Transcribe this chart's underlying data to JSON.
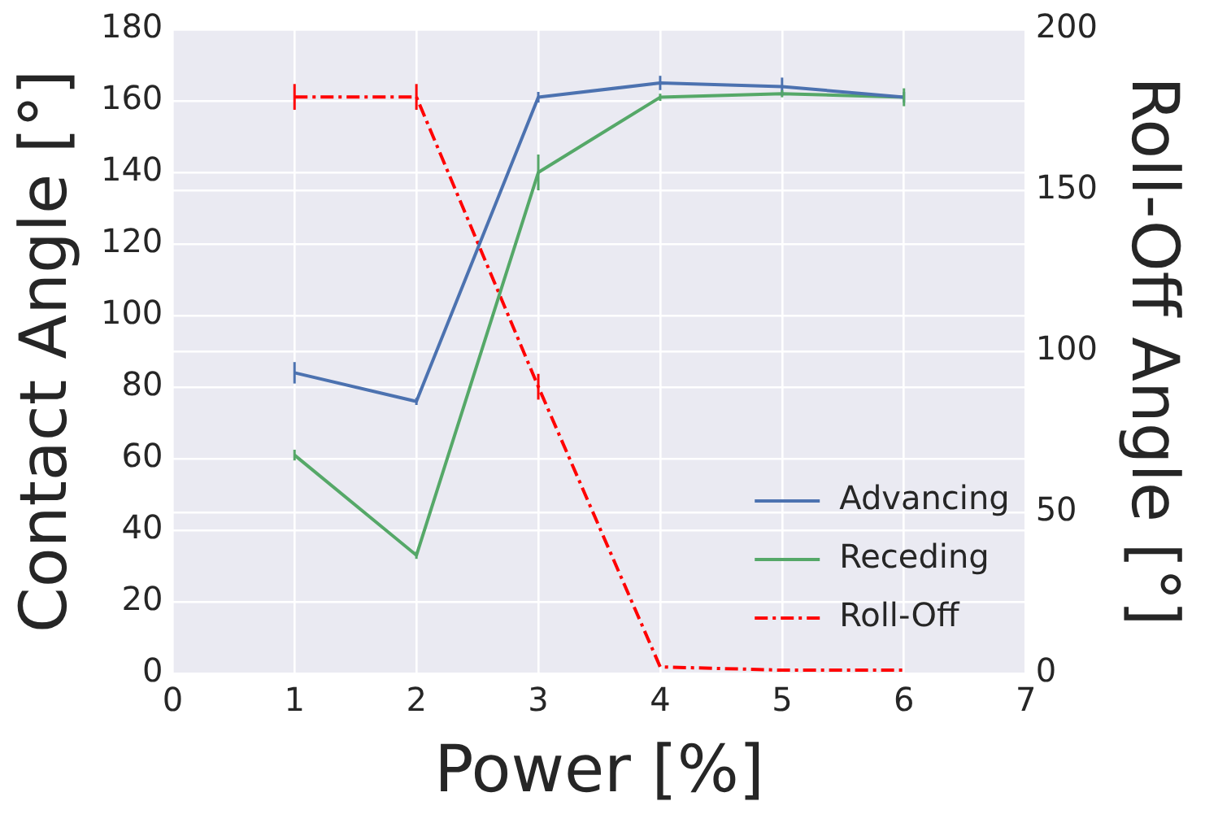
{
  "chart_data": {
    "type": "line",
    "xlabel": "Power [%]",
    "ylabel": "Contact Angle [°]",
    "y2label": "Roll-Off Angle [°]",
    "x": [
      1,
      2,
      3,
      4,
      5,
      6
    ],
    "series": [
      {
        "name": "Advancing",
        "color": "#4c72b0",
        "values": [
          84,
          76,
          161,
          165,
          164,
          161
        ],
        "errors": [
          3,
          1,
          1.5,
          2,
          2.5,
          1.5
        ],
        "line_style": "solid"
      },
      {
        "name": "Receding",
        "color": "#55a868",
        "values": [
          61,
          33,
          140,
          161,
          162,
          161
        ],
        "errors": [
          1.5,
          1,
          5,
          1,
          1,
          2.5
        ],
        "line_style": "solid"
      },
      {
        "name": "Roll-Off",
        "color": "#ff0000",
        "values": [
          179,
          179,
          89,
          2,
          1,
          1
        ],
        "errors": [
          4,
          4,
          4,
          null,
          null,
          null
        ],
        "axis": "y2",
        "line_style": "dashed"
      }
    ],
    "xlim": [
      0,
      7
    ],
    "xticks": [
      0,
      1,
      2,
      3,
      4,
      5,
      6,
      7
    ],
    "ylim": [
      0,
      180
    ],
    "yticks": [
      0,
      20,
      40,
      60,
      80,
      100,
      120,
      140,
      160,
      180
    ],
    "y2lim": [
      0,
      200
    ],
    "y2ticks": [
      0,
      50,
      100,
      150,
      200
    ],
    "grid": true,
    "legend": "bottom right"
  }
}
